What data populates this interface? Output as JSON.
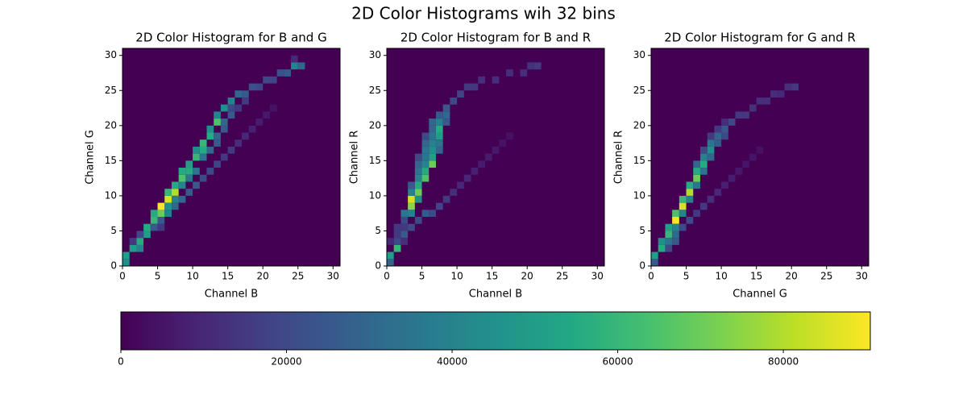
{
  "chart_data": [
    {
      "type": "heatmap",
      "title": "2D Color Histogram for B and G",
      "xlabel": "Channel B",
      "ylabel": "Channel G",
      "xlim": [
        0,
        31
      ],
      "ylim": [
        0,
        31
      ],
      "xticks": [
        0,
        5,
        10,
        15,
        20,
        25,
        30
      ],
      "yticks": [
        0,
        5,
        10,
        15,
        20,
        25,
        30
      ],
      "cells": [
        [
          0,
          0,
          45000
        ],
        [
          0,
          1,
          50000
        ],
        [
          1,
          2,
          50000
        ],
        [
          2,
          2,
          40000
        ],
        [
          2,
          3,
          55000
        ],
        [
          3,
          4,
          50000
        ],
        [
          3,
          5,
          55000
        ],
        [
          4,
          6,
          60000
        ],
        [
          4,
          7,
          55000
        ],
        [
          5,
          7,
          70000
        ],
        [
          5,
          8,
          90000
        ],
        [
          6,
          9,
          85000
        ],
        [
          6,
          10,
          60000
        ],
        [
          7,
          10,
          80000
        ],
        [
          7,
          11,
          55000
        ],
        [
          8,
          12,
          65000
        ],
        [
          8,
          13,
          55000
        ],
        [
          9,
          13,
          55000
        ],
        [
          9,
          14,
          50000
        ],
        [
          10,
          15,
          60000
        ],
        [
          10,
          16,
          45000
        ],
        [
          11,
          16,
          55000
        ],
        [
          11,
          17,
          60000
        ],
        [
          12,
          18,
          55000
        ],
        [
          12,
          19,
          45000
        ],
        [
          13,
          20,
          65000
        ],
        [
          13,
          21,
          40000
        ],
        [
          14,
          22,
          45000
        ],
        [
          15,
          23,
          40000
        ],
        [
          16,
          24,
          30000
        ],
        [
          17,
          24,
          25000
        ],
        [
          18,
          25,
          22000
        ],
        [
          19,
          25,
          20000
        ],
        [
          20,
          26,
          20000
        ],
        [
          21,
          26,
          18000
        ],
        [
          22,
          27,
          22000
        ],
        [
          23,
          27,
          25000
        ],
        [
          24,
          28,
          40000
        ],
        [
          25,
          28,
          30000
        ],
        [
          24,
          29,
          10000
        ],
        [
          1,
          3,
          15000
        ],
        [
          2,
          4,
          20000
        ],
        [
          4,
          5,
          25000
        ],
        [
          5,
          5,
          15000
        ],
        [
          5,
          6,
          25000
        ],
        [
          6,
          7,
          40000
        ],
        [
          7,
          8,
          30000
        ],
        [
          8,
          9,
          30000
        ],
        [
          9,
          10,
          25000
        ],
        [
          10,
          11,
          25000
        ],
        [
          11,
          12,
          20000
        ],
        [
          12,
          13,
          20000
        ],
        [
          13,
          14,
          18000
        ],
        [
          14,
          15,
          15000
        ],
        [
          15,
          16,
          15000
        ],
        [
          16,
          17,
          12000
        ],
        [
          17,
          18,
          10000
        ],
        [
          18,
          19,
          8000
        ],
        [
          19,
          20,
          7000
        ],
        [
          20,
          21,
          6000
        ],
        [
          21,
          22,
          5000
        ],
        [
          9,
          12,
          35000
        ],
        [
          10,
          13,
          35000
        ],
        [
          11,
          15,
          35000
        ],
        [
          12,
          16,
          30000
        ],
        [
          13,
          17,
          25000
        ],
        [
          13,
          18,
          30000
        ],
        [
          14,
          19,
          25000
        ],
        [
          14,
          20,
          30000
        ],
        [
          15,
          21,
          25000
        ],
        [
          15,
          22,
          20000
        ],
        [
          16,
          22,
          15000
        ],
        [
          17,
          23,
          15000
        ],
        [
          7,
          9,
          40000
        ],
        [
          8,
          11,
          40000
        ],
        [
          6,
          8,
          45000
        ]
      ]
    },
    {
      "type": "heatmap",
      "title": "2D Color Histogram for B and R",
      "xlabel": "Channel B",
      "ylabel": "Channel R",
      "xlim": [
        0,
        31
      ],
      "ylim": [
        0,
        31
      ],
      "xticks": [
        0,
        5,
        10,
        15,
        20,
        25,
        30
      ],
      "yticks": [
        0,
        5,
        10,
        15,
        20,
        25,
        30
      ],
      "cells": [
        [
          0,
          0,
          30000
        ],
        [
          0,
          1,
          50000
        ],
        [
          1,
          2,
          60000
        ],
        [
          1,
          3,
          20000
        ],
        [
          2,
          4,
          25000
        ],
        [
          2,
          5,
          15000
        ],
        [
          2,
          6,
          20000
        ],
        [
          2,
          7,
          35000
        ],
        [
          3,
          8,
          75000
        ],
        [
          3,
          9,
          85000
        ],
        [
          4,
          10,
          70000
        ],
        [
          4,
          11,
          55000
        ],
        [
          5,
          12,
          65000
        ],
        [
          5,
          13,
          55000
        ],
        [
          6,
          14,
          70000
        ],
        [
          6,
          15,
          50000
        ],
        [
          6,
          16,
          45000
        ],
        [
          6,
          17,
          40000
        ],
        [
          7,
          18,
          50000
        ],
        [
          7,
          19,
          55000
        ],
        [
          7,
          20,
          40000
        ],
        [
          8,
          21,
          30000
        ],
        [
          8,
          22,
          25000
        ],
        [
          9,
          23,
          20000
        ],
        [
          10,
          24,
          18000
        ],
        [
          11,
          25,
          15000
        ],
        [
          12,
          25,
          14000
        ],
        [
          13,
          26,
          12000
        ],
        [
          15,
          26,
          12000
        ],
        [
          17,
          27,
          12000
        ],
        [
          19,
          27,
          12000
        ],
        [
          20,
          28,
          13000
        ],
        [
          21,
          28,
          15000
        ],
        [
          3,
          10,
          40000
        ],
        [
          4,
          12,
          40000
        ],
        [
          4,
          13,
          35000
        ],
        [
          5,
          14,
          40000
        ],
        [
          5,
          15,
          35000
        ],
        [
          5,
          16,
          35000
        ],
        [
          6,
          18,
          35000
        ],
        [
          4,
          9,
          45000
        ],
        [
          3,
          7,
          40000
        ],
        [
          4,
          14,
          30000
        ],
        [
          5,
          17,
          30000
        ],
        [
          6,
          19,
          30000
        ],
        [
          6,
          20,
          30000
        ],
        [
          7,
          21,
          25000
        ],
        [
          8,
          20,
          25000
        ],
        [
          7,
          17,
          35000
        ],
        [
          7,
          16,
          30000
        ],
        [
          3,
          11,
          25000
        ],
        [
          4,
          15,
          20000
        ],
        [
          5,
          18,
          20000
        ],
        [
          1,
          4,
          15000
        ],
        [
          1,
          5,
          15000
        ],
        [
          0,
          3,
          10000
        ],
        [
          2,
          3,
          12000
        ],
        [
          3,
          5,
          20000
        ],
        [
          4,
          6,
          20000
        ],
        [
          5,
          7,
          25000
        ],
        [
          6,
          7,
          20000
        ],
        [
          7,
          8,
          18000
        ],
        [
          8,
          9,
          15000
        ],
        [
          9,
          10,
          12000
        ],
        [
          10,
          11,
          10000
        ],
        [
          11,
          12,
          10000
        ],
        [
          12,
          13,
          8000
        ],
        [
          13,
          14,
          7000
        ],
        [
          14,
          15,
          7000
        ],
        [
          15,
          16,
          6000
        ],
        [
          16,
          17,
          5000
        ],
        [
          17,
          18,
          4000
        ]
      ]
    },
    {
      "type": "heatmap",
      "title": "2D Color Histogram for G and R",
      "xlabel": "Channel G",
      "ylabel": "Channel R",
      "xlim": [
        0,
        31
      ],
      "ylim": [
        0,
        31
      ],
      "xticks": [
        0,
        5,
        10,
        15,
        20,
        25,
        30
      ],
      "yticks": [
        0,
        5,
        10,
        15,
        20,
        25,
        30
      ],
      "cells": [
        [
          0,
          0,
          25000
        ],
        [
          0,
          1,
          50000
        ],
        [
          1,
          2,
          55000
        ],
        [
          1,
          3,
          45000
        ],
        [
          2,
          4,
          60000
        ],
        [
          2,
          5,
          50000
        ],
        [
          3,
          6,
          90000
        ],
        [
          3,
          7,
          65000
        ],
        [
          4,
          8,
          85000
        ],
        [
          4,
          9,
          60000
        ],
        [
          5,
          10,
          80000
        ],
        [
          5,
          11,
          55000
        ],
        [
          6,
          12,
          70000
        ],
        [
          6,
          13,
          55000
        ],
        [
          7,
          14,
          55000
        ],
        [
          7,
          15,
          40000
        ],
        [
          8,
          16,
          45000
        ],
        [
          8,
          17,
          35000
        ],
        [
          9,
          18,
          30000
        ],
        [
          10,
          19,
          25000
        ],
        [
          11,
          20,
          20000
        ],
        [
          12,
          21,
          15000
        ],
        [
          13,
          21,
          14000
        ],
        [
          14,
          22,
          13000
        ],
        [
          15,
          23,
          12000
        ],
        [
          16,
          23,
          12000
        ],
        [
          17,
          24,
          12000
        ],
        [
          18,
          24,
          10000
        ],
        [
          19,
          25,
          12000
        ],
        [
          20,
          25,
          15000
        ],
        [
          2,
          3,
          35000
        ],
        [
          3,
          5,
          40000
        ],
        [
          4,
          7,
          40000
        ],
        [
          5,
          9,
          40000
        ],
        [
          6,
          11,
          35000
        ],
        [
          7,
          13,
          35000
        ],
        [
          8,
          15,
          30000
        ],
        [
          9,
          17,
          25000
        ],
        [
          10,
          18,
          20000
        ],
        [
          6,
          14,
          30000
        ],
        [
          7,
          16,
          20000
        ],
        [
          8,
          18,
          15000
        ],
        [
          9,
          19,
          15000
        ],
        [
          10,
          20,
          12000
        ],
        [
          2,
          2,
          20000
        ],
        [
          3,
          3,
          25000
        ],
        [
          3,
          4,
          30000
        ],
        [
          4,
          5,
          20000
        ],
        [
          5,
          6,
          20000
        ],
        [
          6,
          7,
          15000
        ],
        [
          7,
          8,
          15000
        ],
        [
          8,
          9,
          12000
        ],
        [
          9,
          10,
          10000
        ],
        [
          10,
          11,
          8000
        ],
        [
          11,
          12,
          7000
        ],
        [
          12,
          13,
          6000
        ],
        [
          13,
          14,
          5000
        ],
        [
          14,
          15,
          5000
        ],
        [
          15,
          16,
          4000
        ]
      ]
    }
  ],
  "suptitle": "2D Color Histograms wih 32 bins",
  "colorbar": {
    "colormap": "viridis",
    "lim": [
      0,
      90500
    ],
    "ticks": [
      0,
      20000,
      40000,
      60000,
      80000
    ]
  }
}
